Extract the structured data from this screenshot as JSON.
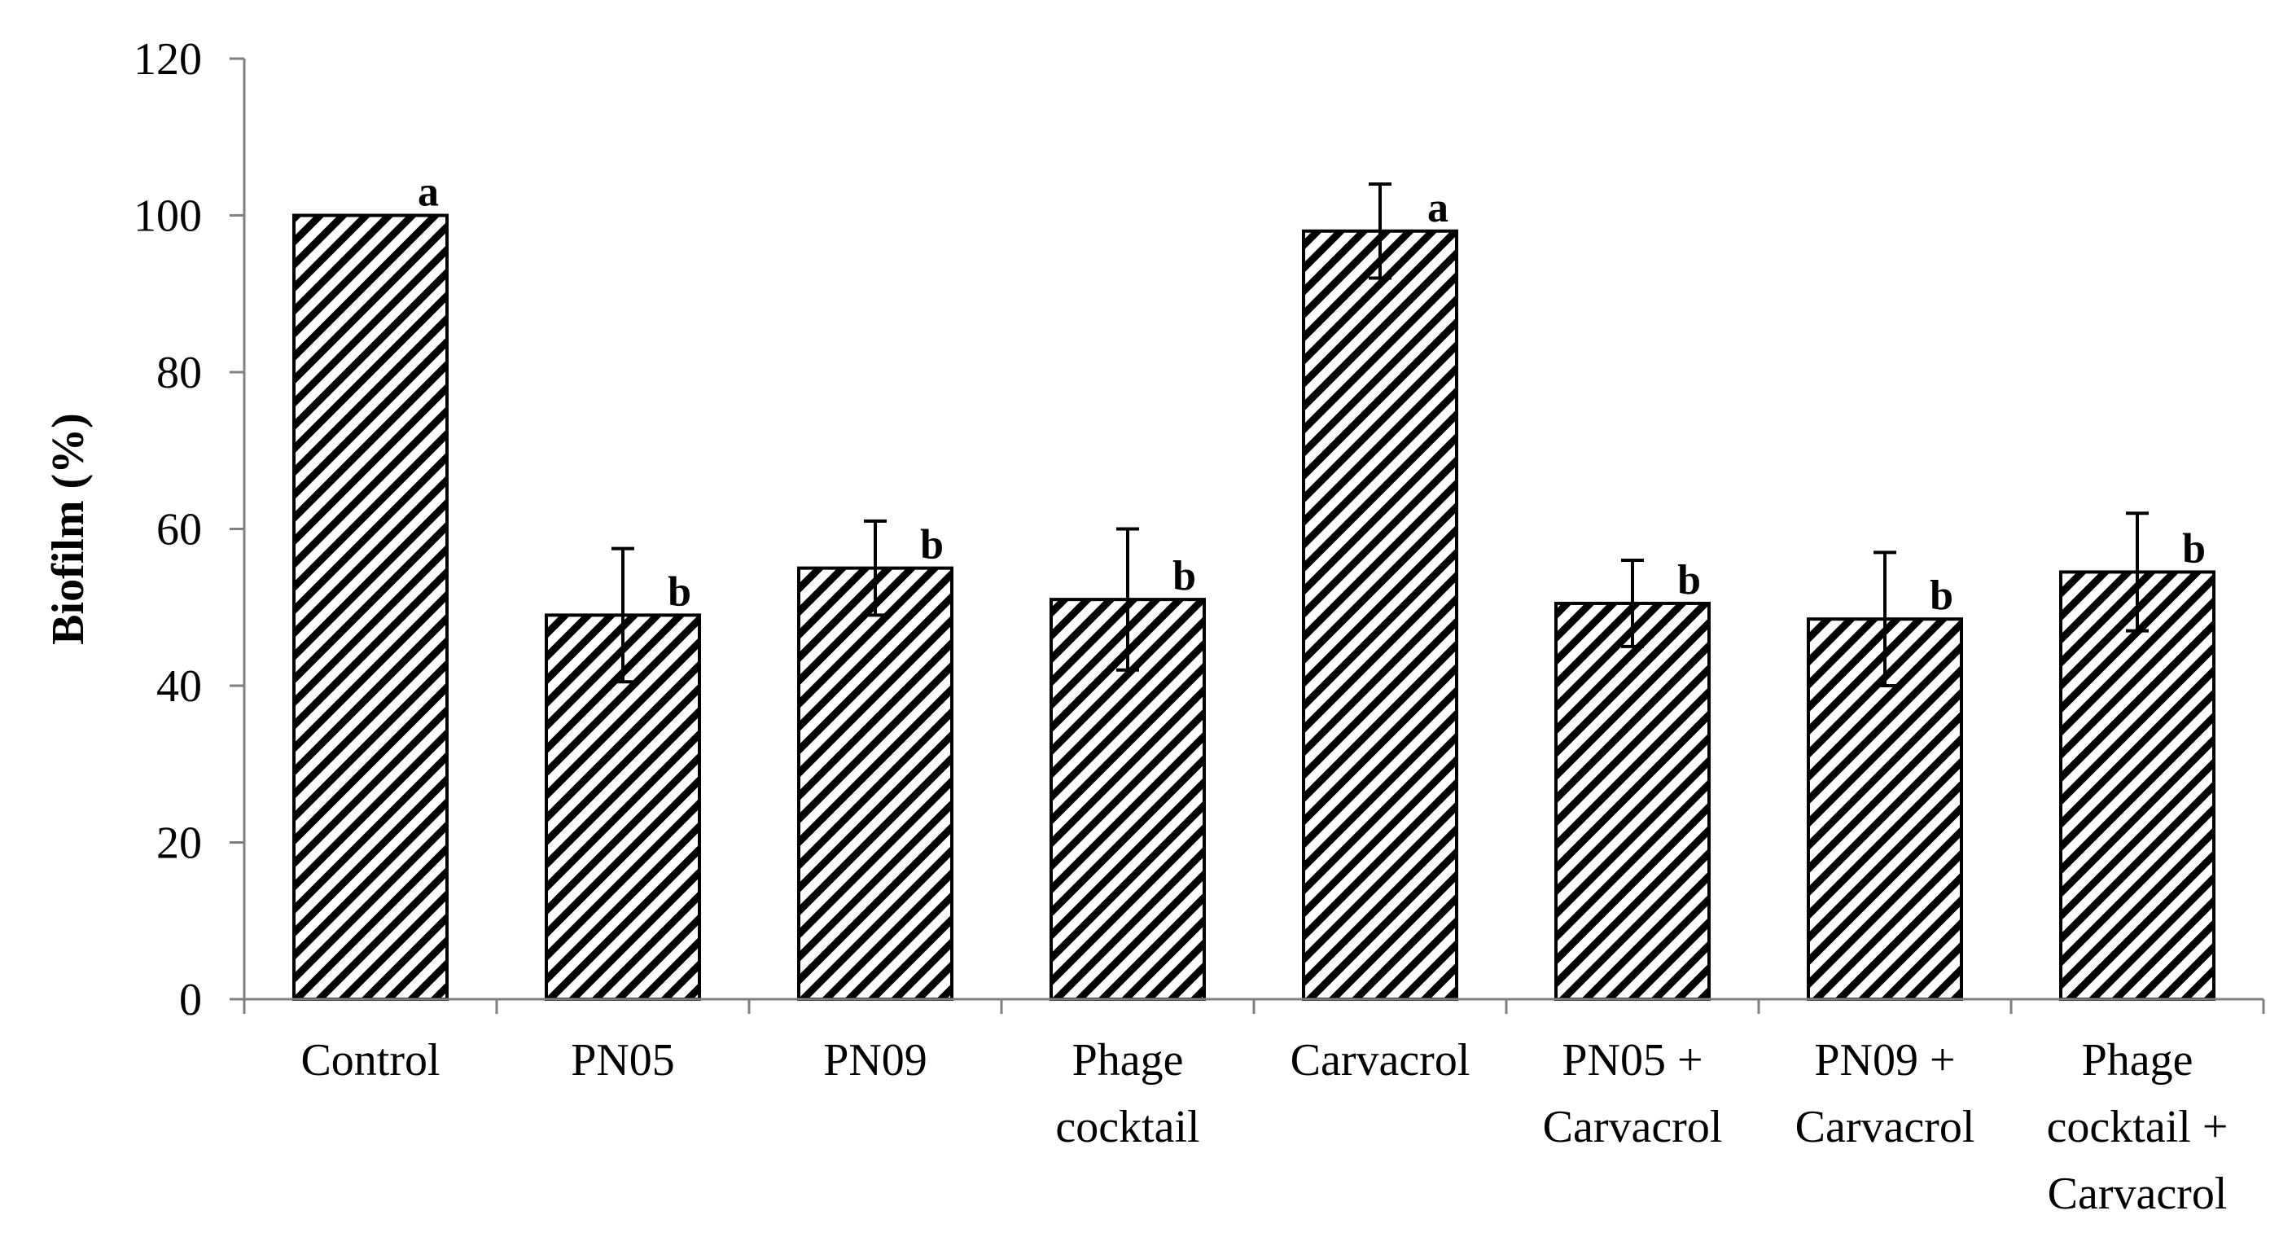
{
  "chart_data": {
    "type": "bar",
    "title": "",
    "xlabel": "",
    "ylabel": "Biofilm (%)",
    "ylim": [
      0,
      120
    ],
    "yticks": [
      0,
      20,
      40,
      60,
      80,
      100,
      120
    ],
    "grid": false,
    "legend": "none",
    "fill_pattern": "diagonal-hatch",
    "colors": {
      "bar_fill": "#ffffff",
      "hatch": "#000000",
      "axis": "#808080"
    },
    "categories": [
      [
        "Control"
      ],
      [
        "PN05"
      ],
      [
        "PN09"
      ],
      [
        "Phage",
        "cocktail"
      ],
      [
        "Carvacrol"
      ],
      [
        "PN05 +",
        "Carvacrol"
      ],
      [
        "PN09 +",
        "Carvacrol"
      ],
      [
        "Phage",
        "cocktail +",
        "Carvacrol"
      ]
    ],
    "values": [
      100,
      49,
      55,
      51,
      98,
      50.5,
      48.5,
      54.5
    ],
    "errors": [
      0,
      8.5,
      6,
      9,
      6,
      5.5,
      8.5,
      7.5
    ],
    "significance": [
      "a",
      "b",
      "b",
      "b",
      "a",
      "b",
      "b",
      "b"
    ]
  }
}
